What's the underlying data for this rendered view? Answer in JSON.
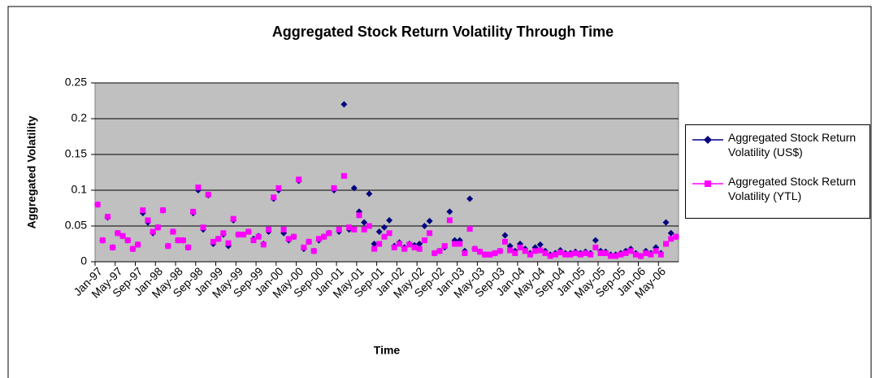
{
  "chart_data": {
    "type": "line",
    "title": "Aggregated Stock Return Volatility Through Time",
    "x_label": "Time",
    "y_label": "Aggregated Volatility",
    "categories": [
      "Jan-97",
      null,
      null,
      null,
      "May-97",
      null,
      null,
      null,
      "Sep-97",
      null,
      null,
      null,
      "Jan-98",
      null,
      null,
      null,
      "May-98",
      null,
      null,
      null,
      "Sep-98",
      null,
      null,
      null,
      "Jan-99",
      null,
      null,
      null,
      "May-99",
      null,
      null,
      null,
      "Sep-99",
      null,
      null,
      null,
      "Jan-00",
      null,
      null,
      null,
      "May-00",
      null,
      null,
      null,
      "Sep-00",
      null,
      null,
      null,
      "Jan-01",
      null,
      null,
      null,
      "May-01",
      null,
      null,
      null,
      "Sep-01",
      null,
      null,
      null,
      "Jan-02",
      null,
      null,
      null,
      "May-02",
      null,
      null,
      null,
      "Sep-02",
      null,
      null,
      null,
      "Jan-03",
      null,
      null,
      null,
      "May-03",
      null,
      null,
      null,
      "Sep-03",
      null,
      null,
      null,
      "Jan-04",
      null,
      null,
      null,
      "May-04",
      null,
      null,
      null,
      "Sep-04",
      null,
      null,
      null,
      "Jan-05",
      null,
      null,
      null,
      "May-05",
      null,
      null,
      null,
      "Sep-05",
      null,
      null,
      null,
      "Jan-06",
      null,
      null,
      null,
      "May-06",
      null,
      null,
      null
    ],
    "series": [
      {
        "name": "Aggregated Stock Return Volatility (US$)",
        "color": "#000080",
        "marker": "diamond",
        "values": [
          0.08,
          0.03,
          0.062,
          0.02,
          0.04,
          0.036,
          0.03,
          0.018,
          0.024,
          0.068,
          0.055,
          0.04,
          0.048,
          0.072,
          0.022,
          0.042,
          0.03,
          0.03,
          0.02,
          0.068,
          0.1,
          0.045,
          0.093,
          0.025,
          0.032,
          0.038,
          0.022,
          0.058,
          0.038,
          0.038,
          0.042,
          0.032,
          0.036,
          0.025,
          0.042,
          0.088,
          0.1,
          0.04,
          0.03,
          0.035,
          0.113,
          0.018,
          0.028,
          0.015,
          0.03,
          0.035,
          0.04,
          0.1,
          0.042,
          0.22,
          0.045,
          0.103,
          0.07,
          0.055,
          0.095,
          0.025,
          0.042,
          0.048,
          0.058,
          0.022,
          0.027,
          0.02,
          0.025,
          0.023,
          0.025,
          0.05,
          0.057,
          0.012,
          0.015,
          0.02,
          0.07,
          0.03,
          0.03,
          0.015,
          0.088,
          0.018,
          0.014,
          0.01,
          0.01,
          0.012,
          0.015,
          0.037,
          0.022,
          0.015,
          0.025,
          0.018,
          0.012,
          0.02,
          0.024,
          0.015,
          0.01,
          0.012,
          0.016,
          0.012,
          0.012,
          0.014,
          0.012,
          0.014,
          0.012,
          0.03,
          0.015,
          0.014,
          0.01,
          0.01,
          0.012,
          0.015,
          0.018,
          0.012,
          0.008,
          0.015,
          0.012,
          0.02,
          0.012,
          0.055,
          0.04,
          0.035
        ]
      },
      {
        "name": "Aggregated Stock Return Volatility (YTL)",
        "color": "#ff00ff",
        "marker": "square",
        "values": [
          0.08,
          0.03,
          0.063,
          0.02,
          0.04,
          0.036,
          0.03,
          0.018,
          0.024,
          0.072,
          0.058,
          0.042,
          0.048,
          0.072,
          0.022,
          0.042,
          0.03,
          0.03,
          0.02,
          0.07,
          0.104,
          0.048,
          0.094,
          0.028,
          0.032,
          0.04,
          0.026,
          0.06,
          0.038,
          0.038,
          0.042,
          0.03,
          0.035,
          0.024,
          0.045,
          0.09,
          0.103,
          0.045,
          0.032,
          0.035,
          0.115,
          0.02,
          0.028,
          0.015,
          0.032,
          0.035,
          0.04,
          0.103,
          0.045,
          0.12,
          0.048,
          0.045,
          0.065,
          0.045,
          0.05,
          0.018,
          0.025,
          0.035,
          0.04,
          0.02,
          0.025,
          0.018,
          0.024,
          0.02,
          0.018,
          0.03,
          0.04,
          0.012,
          0.015,
          0.022,
          0.058,
          0.025,
          0.025,
          0.012,
          0.046,
          0.018,
          0.014,
          0.01,
          0.01,
          0.012,
          0.015,
          0.028,
          0.016,
          0.012,
          0.02,
          0.015,
          0.01,
          0.015,
          0.016,
          0.012,
          0.008,
          0.01,
          0.013,
          0.01,
          0.01,
          0.012,
          0.01,
          0.012,
          0.01,
          0.02,
          0.012,
          0.012,
          0.008,
          0.008,
          0.01,
          0.012,
          0.015,
          0.01,
          0.008,
          0.012,
          0.01,
          0.015,
          0.01,
          0.025,
          0.032,
          0.035
        ]
      }
    ],
    "ylim": [
      0,
      0.25
    ],
    "yticks": [
      0,
      0.05,
      0.1,
      0.15,
      0.2,
      0.25
    ],
    "grid": true,
    "legend": "right",
    "plot_background": "#c0c0c0"
  }
}
